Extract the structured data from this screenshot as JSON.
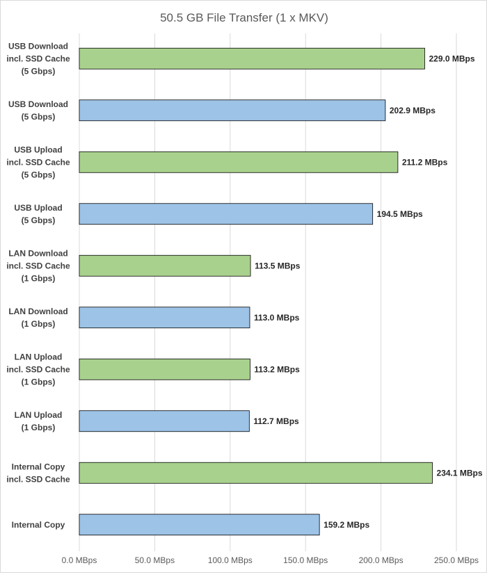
{
  "chart_data": {
    "type": "bar",
    "orientation": "horizontal",
    "title": "50.5 GB File Transfer (1 x MKV)",
    "xlabel": "",
    "ylabel": "",
    "xlim": [
      0,
      250
    ],
    "grid": true,
    "legend": "none",
    "unit_suffix": " MBps",
    "ticks": [
      "0.0 MBps",
      "50.0 MBps",
      "100.0 MBps",
      "150.0 MBps",
      "200.0 MBps",
      "250.0 MBps"
    ],
    "tick_values": [
      0,
      50,
      100,
      150,
      200,
      250
    ],
    "colors": {
      "ssd_cache": "#a9d18e",
      "standard": "#9dc3e6",
      "border": "#000000",
      "grid": "#d9d9d9"
    },
    "categories": [
      [
        "USB Download",
        "incl. SSD Cache",
        "(5 Gbps)"
      ],
      [
        "USB Download",
        "(5 Gbps)"
      ],
      [
        "USB Upload",
        "incl. SSD Cache",
        "(5 Gbps)"
      ],
      [
        "USB Upload",
        "(5 Gbps)"
      ],
      [
        "LAN Download",
        "incl. SSD Cache",
        "(1 Gbps)"
      ],
      [
        "LAN Download",
        "(1 Gbps)"
      ],
      [
        "LAN Upload",
        "incl. SSD Cache",
        "(1 Gbps)"
      ],
      [
        "LAN Upload",
        "(1 Gbps)"
      ],
      [
        "Internal Copy",
        "incl. SSD Cache"
      ],
      [
        "Internal Copy"
      ]
    ],
    "values": [
      229.0,
      202.9,
      211.2,
      194.5,
      113.5,
      113.0,
      113.2,
      112.7,
      234.1,
      159.2
    ],
    "data_labels": [
      "229.0 MBps",
      "202.9 MBps",
      "211.2 MBps",
      "194.5 MBps",
      "113.5 MBps",
      "113.0 MBps",
      "113.2 MBps",
      "112.7 MBps",
      "234.1 MBps",
      "159.2 MBps"
    ],
    "bar_groups": [
      "ssd_cache",
      "standard",
      "ssd_cache",
      "standard",
      "ssd_cache",
      "standard",
      "ssd_cache",
      "standard",
      "ssd_cache",
      "standard"
    ]
  }
}
